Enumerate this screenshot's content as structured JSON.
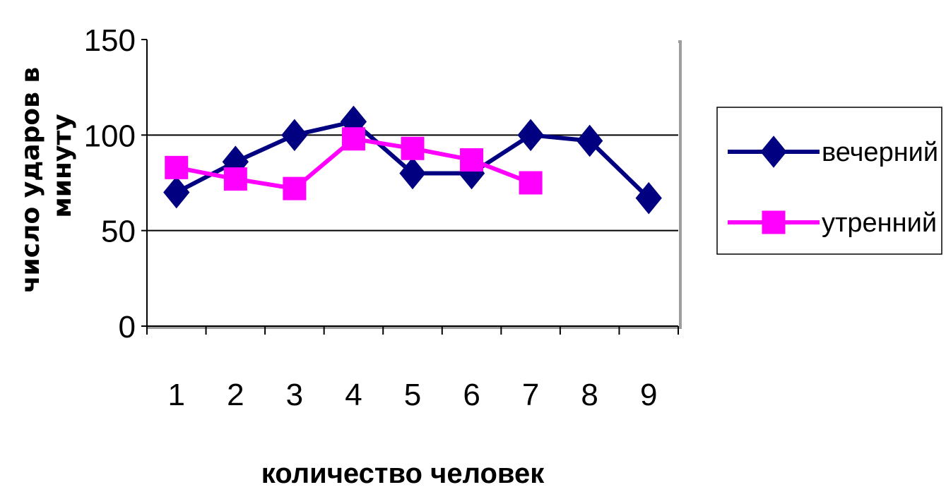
{
  "chart_data": {
    "type": "line",
    "title": "",
    "xlabel": "количество человек",
    "ylabel_lines": [
      "число ударов в",
      "минуту"
    ],
    "categories": [
      "1",
      "2",
      "3",
      "4",
      "5",
      "6",
      "7",
      "8",
      "9"
    ],
    "ylim": [
      0,
      150
    ],
    "yticks": [
      "0",
      "50",
      "100",
      "150"
    ],
    "grid": true,
    "legend_position": "right",
    "series": [
      {
        "name": "вечерний",
        "color": "#000080",
        "marker": "diamond",
        "values": [
          70,
          86,
          100,
          107,
          80,
          80,
          100,
          97,
          67
        ]
      },
      {
        "name": "утренний",
        "color": "#FF00FF",
        "marker": "square",
        "values": [
          83,
          77,
          72,
          98,
          93,
          87,
          75,
          null,
          null
        ]
      }
    ]
  }
}
